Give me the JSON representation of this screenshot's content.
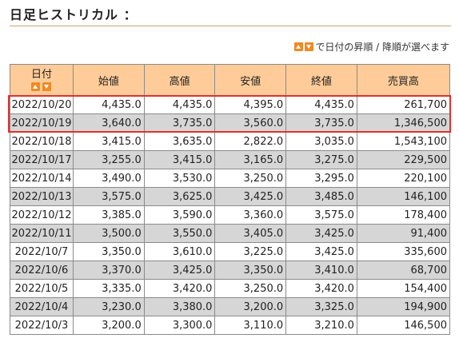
{
  "title": "日足ヒストリカル ：",
  "sort_note": "で日付の昇順 / 降順が選べます",
  "columns": {
    "date": "日付",
    "open": "始値",
    "high": "高値",
    "low": "安値",
    "close": "終値",
    "volume": "売買高"
  },
  "icons": {
    "sort_asc": "sort-up-icon",
    "sort_desc": "sort-down-icon",
    "accent_color": "#f08a24",
    "header_bg": "#ffcc99",
    "highlight_color": "#e03030"
  },
  "rows": [
    {
      "date": "2022/10/20",
      "open": "4,435.0",
      "high": "4,435.0",
      "low": "4,395.0",
      "close": "4,435.0",
      "volume": "261,700"
    },
    {
      "date": "2022/10/19",
      "open": "3,640.0",
      "high": "3,735.0",
      "low": "3,560.0",
      "close": "3,735.0",
      "volume": "1,346,500"
    },
    {
      "date": "2022/10/18",
      "open": "3,415.0",
      "high": "3,635.0",
      "low": "2,822.0",
      "close": "3,035.0",
      "volume": "1,543,100"
    },
    {
      "date": "2022/10/17",
      "open": "3,255.0",
      "high": "3,415.0",
      "low": "3,165.0",
      "close": "3,275.0",
      "volume": "229,500"
    },
    {
      "date": "2022/10/14",
      "open": "3,490.0",
      "high": "3,530.0",
      "low": "3,250.0",
      "close": "3,295.0",
      "volume": "220,100"
    },
    {
      "date": "2022/10/13",
      "open": "3,575.0",
      "high": "3,625.0",
      "low": "3,425.0",
      "close": "3,485.0",
      "volume": "146,100"
    },
    {
      "date": "2022/10/12",
      "open": "3,385.0",
      "high": "3,590.0",
      "low": "3,360.0",
      "close": "3,575.0",
      "volume": "178,400"
    },
    {
      "date": "2022/10/11",
      "open": "3,500.0",
      "high": "3,550.0",
      "low": "3,405.0",
      "close": "3,425.0",
      "volume": "91,400"
    },
    {
      "date": "2022/10/7",
      "open": "3,350.0",
      "high": "3,610.0",
      "low": "3,225.0",
      "close": "3,425.0",
      "volume": "335,600"
    },
    {
      "date": "2022/10/6",
      "open": "3,370.0",
      "high": "3,425.0",
      "low": "3,350.0",
      "close": "3,410.0",
      "volume": "68,700"
    },
    {
      "date": "2022/10/5",
      "open": "3,335.0",
      "high": "3,420.0",
      "low": "3,250.0",
      "close": "3,420.0",
      "volume": "154,400"
    },
    {
      "date": "2022/10/4",
      "open": "3,230.0",
      "high": "3,380.0",
      "low": "3,200.0",
      "close": "3,325.0",
      "volume": "194,900"
    },
    {
      "date": "2022/10/3",
      "open": "3,200.0",
      "high": "3,300.0",
      "low": "3,110.0",
      "close": "3,210.0",
      "volume": "146,500"
    }
  ]
}
